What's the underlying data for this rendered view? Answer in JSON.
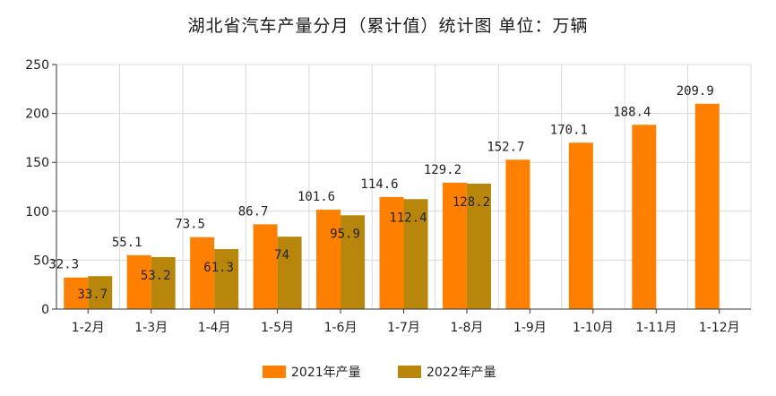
{
  "chart_data": {
    "type": "bar",
    "title": "湖北省汽车产量分月（累计值）统计图 单位：万辆",
    "categories": [
      "1-2月",
      "1-3月",
      "1-4月",
      "1-5月",
      "1-6月",
      "1-7月",
      "1-8月",
      "1-9月",
      "1-10月",
      "1-11月",
      "1-12月"
    ],
    "series": [
      {
        "name": "2021年产量",
        "color": "#FF8000",
        "values": [
          32.3,
          55.1,
          73.5,
          86.7,
          101.6,
          114.6,
          129.2,
          152.7,
          170.1,
          188.4,
          209.9
        ],
        "labels": [
          "32.3",
          "55.1",
          "73.5",
          "86.7",
          "101.6",
          "114.6",
          "129.2",
          "152.7",
          "170.1",
          "188.4",
          "209.9"
        ]
      },
      {
        "name": "2022年产量",
        "color": "#B8860B",
        "values": [
          33.7,
          53.2,
          61.3,
          74,
          95.9,
          112.4,
          128.2,
          null,
          null,
          null,
          null
        ],
        "labels": [
          "33.7",
          "53.2",
          "61.3",
          "74",
          "95.9",
          "112.4",
          "128.2",
          "",
          "",
          "",
          ""
        ]
      }
    ],
    "ylim": [
      0,
      250
    ],
    "yticks": [
      "0",
      "50",
      "100",
      "150",
      "200",
      "250"
    ],
    "ytick_values": [
      0,
      50,
      100,
      150,
      200,
      250
    ],
    "grid": true,
    "legend_position": "bottom"
  }
}
